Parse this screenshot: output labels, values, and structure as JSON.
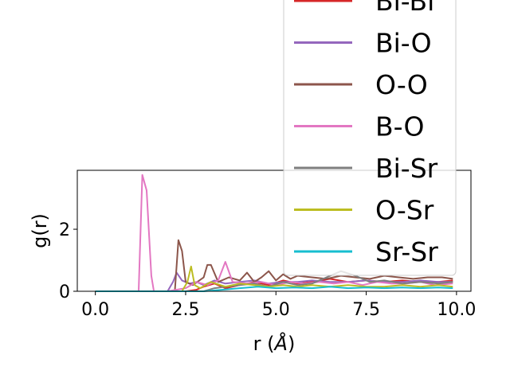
{
  "chart_data": {
    "type": "line",
    "xlabel": "r (",
    "xlabel_unit": "Å",
    "xlabel_close": ")",
    "ylabel": "g(r)",
    "xlim": [
      -0.5,
      10.4
    ],
    "ylim": [
      0,
      3.9
    ],
    "xticks": [
      0.0,
      2.5,
      5.0,
      7.5,
      10.0
    ],
    "xtick_labels": [
      "0.0",
      "2.5",
      "5.0",
      "7.5",
      "10.0"
    ],
    "yticks": [
      0,
      2
    ],
    "ytick_labels": [
      "0",
      "2"
    ],
    "grid": false,
    "legend_position": "top-right (overflowing above axes)",
    "series": [
      {
        "name": "Bi-Bi",
        "color": "#d62728",
        "x": [
          0,
          2.5,
          2.8,
          3.0,
          3.3,
          3.6,
          4.0,
          4.4,
          4.8,
          5.2,
          5.6,
          6.0,
          6.5,
          7.0,
          7.5,
          8.0,
          8.5,
          9.0,
          9.5,
          9.9
        ],
        "y": [
          0,
          0,
          0.05,
          0.15,
          0.25,
          0.1,
          0.2,
          0.3,
          0.2,
          0.35,
          0.25,
          0.3,
          0.4,
          0.3,
          0.35,
          0.3,
          0.35,
          0.3,
          0.3,
          0.35
        ]
      },
      {
        "name": "Bi-O",
        "color": "#9467bd",
        "x": [
          0,
          2.0,
          2.15,
          2.25,
          2.4,
          2.6,
          2.8,
          3.0,
          3.3,
          3.6,
          4.0,
          4.4,
          4.8,
          5.2,
          5.6,
          6.0,
          6.5,
          7.0,
          7.5,
          8.0,
          8.5,
          9.0,
          9.5,
          9.9
        ],
        "y": [
          0,
          0,
          0.3,
          0.6,
          0.35,
          0.25,
          0.3,
          0.2,
          0.35,
          0.25,
          0.3,
          0.35,
          0.25,
          0.3,
          0.3,
          0.35,
          0.3,
          0.3,
          0.35,
          0.3,
          0.3,
          0.35,
          0.3,
          0.3
        ]
      },
      {
        "name": "O-O",
        "color": "#8c564b",
        "x": [
          0,
          2.2,
          2.3,
          2.4,
          2.5,
          2.7,
          3.0,
          3.1,
          3.2,
          3.4,
          3.7,
          4.0,
          4.2,
          4.4,
          4.6,
          4.8,
          5.0,
          5.2,
          5.4,
          5.6,
          6.0,
          6.4,
          6.8,
          7.2,
          7.6,
          8.0,
          8.4,
          8.8,
          9.2,
          9.6,
          9.9
        ],
        "y": [
          0,
          0,
          1.65,
          1.3,
          0.3,
          0.2,
          0.45,
          0.85,
          0.85,
          0.3,
          0.45,
          0.35,
          0.6,
          0.3,
          0.45,
          0.65,
          0.35,
          0.55,
          0.4,
          0.5,
          0.45,
          0.4,
          0.5,
          0.45,
          0.4,
          0.5,
          0.45,
          0.4,
          0.45,
          0.45,
          0.4
        ]
      },
      {
        "name": "B-O",
        "color": "#e377c2",
        "x": [
          0,
          1.2,
          1.3,
          1.42,
          1.55,
          1.62,
          1.75,
          2.0,
          2.5,
          2.8,
          3.1,
          3.4,
          3.6,
          3.8,
          4.2,
          4.6,
          5.0,
          5.4,
          5.8,
          6.2,
          6.6,
          7.0,
          7.4,
          7.8,
          8.2,
          8.6,
          9.0,
          9.4,
          9.9
        ],
        "y": [
          0,
          0,
          3.75,
          3.25,
          0.5,
          0,
          0,
          0,
          0.1,
          0.3,
          0.2,
          0.35,
          0.95,
          0.3,
          0.25,
          0.3,
          0.2,
          0.3,
          0.25,
          0.3,
          0.25,
          0.3,
          0.2,
          0.3,
          0.25,
          0.25,
          0.3,
          0.2,
          0.25
        ]
      },
      {
        "name": "Bi-Sr",
        "color": "#7f7f7f",
        "x": [
          0,
          3.0,
          3.3,
          3.6,
          4.0,
          4.4,
          4.8,
          5.2,
          5.6,
          6.0,
          6.4,
          6.8,
          7.2,
          7.6,
          8.0,
          8.5,
          9.0,
          9.5,
          9.9
        ],
        "y": [
          0,
          0,
          0.1,
          0.15,
          0.2,
          0.25,
          0.15,
          0.3,
          0.2,
          0.25,
          0.45,
          0.65,
          0.5,
          0.3,
          0.35,
          0.25,
          0.3,
          0.25,
          0.3
        ]
      },
      {
        "name": "O-Sr",
        "color": "#bcbd22",
        "x": [
          0,
          2.4,
          2.55,
          2.65,
          2.75,
          2.9,
          3.2,
          3.6,
          4.0,
          4.4,
          4.8,
          5.2,
          5.6,
          6.0,
          6.5,
          7.0,
          7.5,
          8.0,
          8.5,
          9.0,
          9.5,
          9.9
        ],
        "y": [
          0,
          0,
          0.3,
          0.8,
          0.2,
          0.1,
          0.3,
          0.15,
          0.25,
          0.2,
          0.15,
          0.2,
          0.15,
          0.2,
          0.15,
          0.2,
          0.15,
          0.15,
          0.2,
          0.15,
          0.2,
          0.15
        ]
      },
      {
        "name": "Sr-Sr",
        "color": "#17becf",
        "x": [
          0,
          3.0,
          3.5,
          4.0,
          4.5,
          5.0,
          5.5,
          6.0,
          6.5,
          7.0,
          7.5,
          8.0,
          8.5,
          9.0,
          9.5,
          9.9
        ],
        "y": [
          0,
          0,
          0.05,
          0.1,
          0.15,
          0.1,
          0.12,
          0.1,
          0.15,
          0.1,
          0.12,
          0.1,
          0.12,
          0.1,
          0.12,
          0.1
        ]
      }
    ]
  }
}
